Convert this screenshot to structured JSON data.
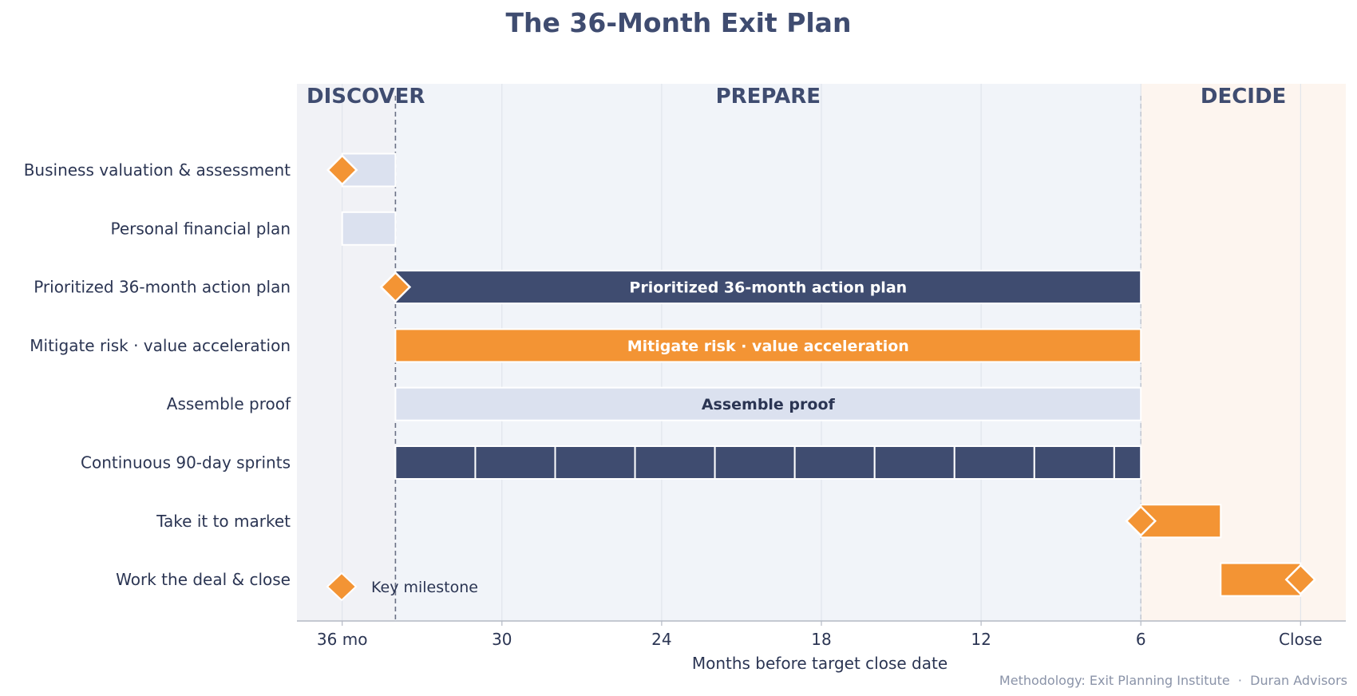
{
  "chart_data": {
    "type": "gantt",
    "title": "The 36-Month Exit Plan",
    "xlabel": "Months before target close date",
    "x_axis": {
      "direction": "decreasing",
      "xlim": [
        37.7,
        -1.7
      ],
      "ticks": [
        {
          "value": 36,
          "label": "36 mo"
        },
        {
          "value": 30,
          "label": "30"
        },
        {
          "value": 24,
          "label": "24"
        },
        {
          "value": 18,
          "label": "18"
        },
        {
          "value": 12,
          "label": "12"
        },
        {
          "value": 6,
          "label": "6"
        },
        {
          "value": 0,
          "label": "Close"
        }
      ],
      "grid": true
    },
    "phases": [
      {
        "name": "DISCOVER",
        "start": 37.7,
        "end": 34
      },
      {
        "name": "PREPARE",
        "start": 34,
        "end": 6
      },
      {
        "name": "DECIDE",
        "start": 6,
        "end": -1.7
      }
    ],
    "phase_dividers": [
      34,
      6
    ],
    "rows": [
      {
        "task": "Business valuation & assessment",
        "start": 36,
        "end": 34,
        "style": "light",
        "bar_label": "",
        "milestones": [
          36
        ]
      },
      {
        "task": "Personal financial plan",
        "start": 36,
        "end": 34,
        "style": "light",
        "bar_label": "",
        "milestones": []
      },
      {
        "task": "Prioritized 36-month action plan",
        "start": 34,
        "end": 6,
        "style": "navy",
        "bar_label": "Prioritized 36-month action plan",
        "milestones": [
          34
        ]
      },
      {
        "task": "Mitigate risk · value acceleration",
        "start": 34,
        "end": 6,
        "style": "orange",
        "bar_label": "Mitigate risk · value acceleration",
        "milestones": []
      },
      {
        "task": "Assemble proof",
        "start": 34,
        "end": 6,
        "style": "light",
        "bar_label": "Assemble proof",
        "milestones": []
      },
      {
        "task": "Continuous 90-day sprints",
        "start": 34,
        "end": 6,
        "style": "navy-sprints",
        "bar_label": "",
        "sprint_length": 3,
        "milestones": []
      },
      {
        "task": "Take it to market",
        "start": 6,
        "end": 3,
        "style": "orange",
        "bar_label": "",
        "milestones": [
          6
        ]
      },
      {
        "task": "Work the deal & close",
        "start": 3,
        "end": 0,
        "style": "orange",
        "bar_label": "",
        "milestones": [
          0
        ]
      }
    ],
    "legend": {
      "label": "Key milestone",
      "placement": "bottom-left"
    },
    "colors": {
      "navy": "#3f4c70",
      "orange": "#f39434",
      "light": "#dbe1ef",
      "prepare_bg": "#f1f4f9",
      "discover_bg": "#f1f2f6",
      "decide_bg": "#fdf5ef",
      "text": "#2b3553",
      "phase_text": "#3f4c70",
      "footer_text": "#8a93a8",
      "grid": "#dde2ea"
    }
  },
  "footer": "Methodology: Exit Planning Institute  ·  Duran Advisors"
}
